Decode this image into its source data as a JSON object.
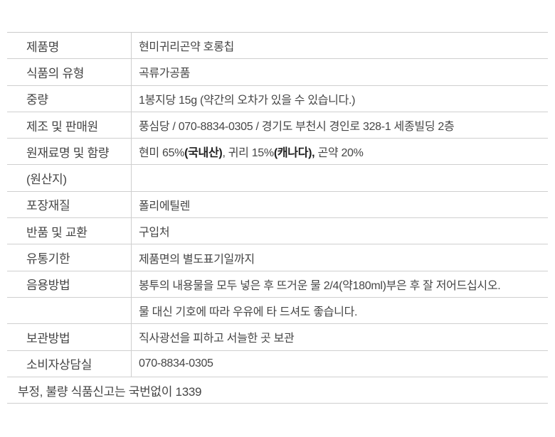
{
  "colors": {
    "background": "#ffffff",
    "border_line": "#cfcfcf",
    "text": "#454545",
    "text_bold": "#1f1f1f"
  },
  "table": {
    "rows": [
      {
        "label": "제품명",
        "value": "현미귀리곤약 호롱칩"
      },
      {
        "label": "식품의 유형",
        "value": "곡류가공품"
      },
      {
        "label": "중량",
        "value": "1봉지당 15g (약간의 오차가 있을 수 있습니다.)"
      },
      {
        "label": "제조 및 판매원",
        "value": "풍심당 / 070-8834-0305 / 경기도 부천시 경인로 328-1 세종빌딩 2층"
      },
      {
        "label": "원재료명 및 함량",
        "value_segments": [
          {
            "text": "현미 65%",
            "bold": false
          },
          {
            "text": "(국내산)",
            "bold": true
          },
          {
            "text": ", 귀리 15%",
            "bold": false
          },
          {
            "text": "(캐나다),",
            "bold": true
          },
          {
            "text": " 곤약 20%",
            "bold": false
          }
        ]
      },
      {
        "label": "(원산지)",
        "value": ""
      },
      {
        "label": "포장재질",
        "value": "폴리에틸렌"
      },
      {
        "label": "반품 및 교환",
        "value": "구입처"
      },
      {
        "label": "유통기한",
        "value": "제품면의 별도표기일까지"
      },
      {
        "label": "음용방법",
        "value": "봉투의 내용물을 모두 넣은 후 뜨거운 물 2/4(약180ml)부은 후 잘 저어드십시오."
      },
      {
        "label": "",
        "value": "물 대신 기호에 따라 우유에 타 드셔도 좋습니다."
      },
      {
        "label": "보관방법",
        "value": "직사광선을 피하고 서늘한 곳 보관"
      },
      {
        "label": "소비자상담실",
        "value": "070-8834-0305"
      },
      {
        "full_text": "부정, 불량 식품신고는 국번없이 1339"
      }
    ]
  }
}
